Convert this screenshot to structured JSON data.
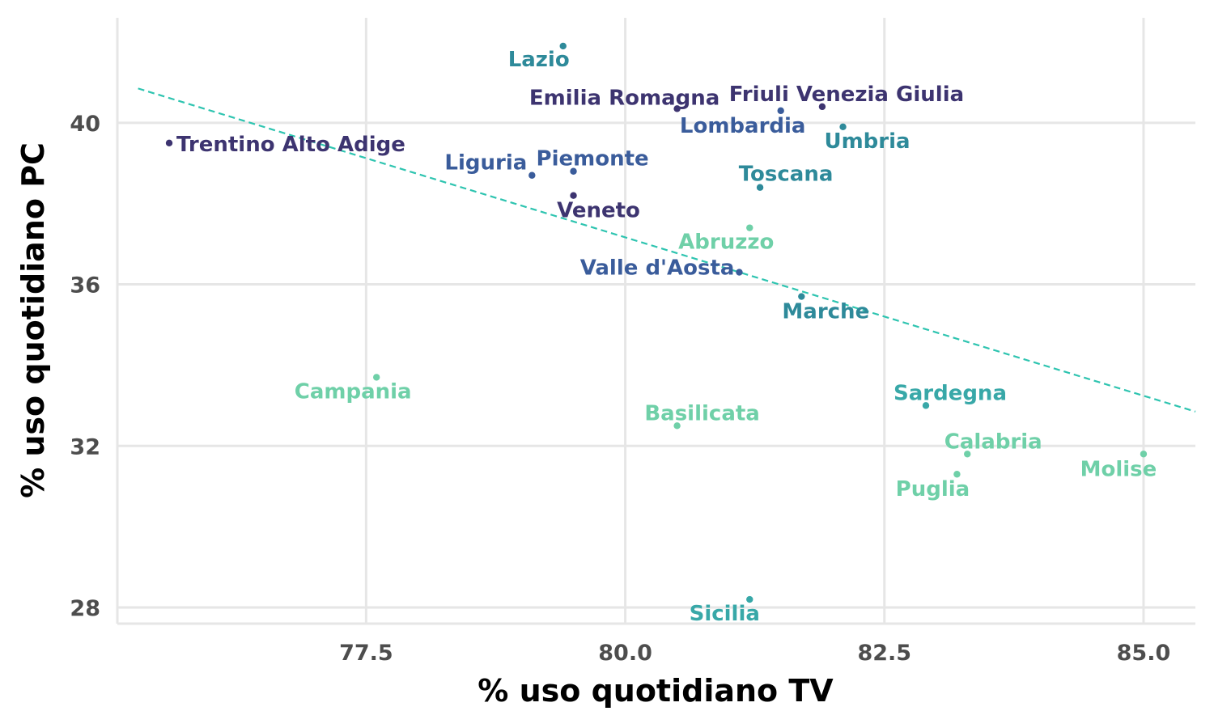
{
  "chart_data": {
    "type": "scatter",
    "title": "",
    "xlabel": "% uso quotidiano TV",
    "ylabel": "% uso quotidiano PC",
    "xlim": [
      75.1,
      85.5
    ],
    "ylim": [
      27.6,
      42.6
    ],
    "x_ticks": [
      {
        "value": 77.5,
        "label": "77.5"
      },
      {
        "value": 80.0,
        "label": "80.0"
      },
      {
        "value": 82.5,
        "label": "82.5"
      },
      {
        "value": 85.0,
        "label": "85.0"
      }
    ],
    "y_ticks": [
      {
        "value": 28,
        "label": "28"
      },
      {
        "value": 32,
        "label": "32"
      },
      {
        "value": 36,
        "label": "36"
      },
      {
        "value": 40,
        "label": "40"
      }
    ],
    "grid": true,
    "legend": "none",
    "trendline": {
      "type": "linear",
      "style": "dashed",
      "color": "#2ec4b0",
      "x": [
        75.3,
        85.5
      ],
      "y": [
        40.85,
        32.85
      ]
    },
    "points": [
      {
        "label": "Lazio",
        "x": 79.4,
        "y": 41.9,
        "color": "#2e8a9a",
        "label_anchor": "end",
        "label_dx": 8,
        "label_dy": 25
      },
      {
        "label": "Emilia Romagna",
        "x": 80.5,
        "y": 40.35,
        "color": "#3d3470",
        "label_anchor": "middle",
        "label_dx": -65,
        "label_dy": -5
      },
      {
        "label": "Friuli Venezia Giulia",
        "x": 81.9,
        "y": 40.4,
        "color": "#3d3470",
        "label_anchor": "middle",
        "label_dx": 30,
        "label_dy": -7
      },
      {
        "label": "Lombardia",
        "x": 81.5,
        "y": 40.3,
        "color": "#3a5c9b",
        "label_anchor": "middle",
        "label_dx": -47,
        "label_dy": 27
      },
      {
        "label": "Umbria",
        "x": 82.1,
        "y": 39.9,
        "color": "#2e8a9a",
        "label_anchor": "middle",
        "label_dx": 30,
        "label_dy": 26
      },
      {
        "label": "Trentino Alto Adige",
        "x": 75.6,
        "y": 39.5,
        "color": "#3d3470",
        "label_anchor": "start",
        "label_dx": 9,
        "label_dy": 10
      },
      {
        "label": "Liguria",
        "x": 79.1,
        "y": 38.7,
        "color": "#3a5c9b",
        "label_anchor": "end",
        "label_dx": -6,
        "label_dy": -7
      },
      {
        "label": "Piemonte",
        "x": 79.5,
        "y": 38.8,
        "color": "#3a5c9b",
        "label_anchor": "start",
        "label_dx": -46,
        "label_dy": -7
      },
      {
        "label": "Toscana",
        "x": 81.3,
        "y": 38.4,
        "color": "#2e8a9a",
        "label_anchor": "middle",
        "label_dx": 32,
        "label_dy": -8
      },
      {
        "label": "Veneto",
        "x": 79.5,
        "y": 38.2,
        "color": "#3d3470",
        "label_anchor": "middle",
        "label_dx": 31,
        "label_dy": 27
      },
      {
        "label": "Abruzzo",
        "x": 81.2,
        "y": 37.4,
        "color": "#6fd0a8",
        "label_anchor": "middle",
        "label_dx": -29,
        "label_dy": 26
      },
      {
        "label": "Valle d'Aosta",
        "x": 81.1,
        "y": 36.3,
        "color": "#3a5c9b",
        "label_anchor": "end",
        "label_dx": -6,
        "label_dy": 3
      },
      {
        "label": "Marche",
        "x": 81.7,
        "y": 35.7,
        "color": "#2e8a9a",
        "label_anchor": "middle",
        "label_dx": 30,
        "label_dy": 27
      },
      {
        "label": "Campania",
        "x": 77.6,
        "y": 33.7,
        "color": "#6fd0a8",
        "label_anchor": "middle",
        "label_dx": -29,
        "label_dy": 26
      },
      {
        "label": "Sardegna",
        "x": 82.9,
        "y": 33.0,
        "color": "#38a8a8",
        "label_anchor": "middle",
        "label_dx": 30,
        "label_dy": -7
      },
      {
        "label": "Basilicata",
        "x": 80.5,
        "y": 32.5,
        "color": "#6fd0a8",
        "label_anchor": "middle",
        "label_dx": 31,
        "label_dy": -7
      },
      {
        "label": "Calabria",
        "x": 83.3,
        "y": 31.8,
        "color": "#6fd0a8",
        "label_anchor": "middle",
        "label_dx": 32,
        "label_dy": -7
      },
      {
        "label": "Molise",
        "x": 85.0,
        "y": 31.8,
        "color": "#6fd0a8",
        "label_anchor": "middle",
        "label_dx": -31,
        "label_dy": 27
      },
      {
        "label": "Puglia",
        "x": 83.2,
        "y": 31.3,
        "color": "#6fd0a8",
        "label_anchor": "middle",
        "label_dx": -30,
        "label_dy": 27
      },
      {
        "label": "Sicilia",
        "x": 81.2,
        "y": 28.2,
        "color": "#38a8a8",
        "label_anchor": "middle",
        "label_dx": -31,
        "label_dy": 26
      }
    ]
  }
}
